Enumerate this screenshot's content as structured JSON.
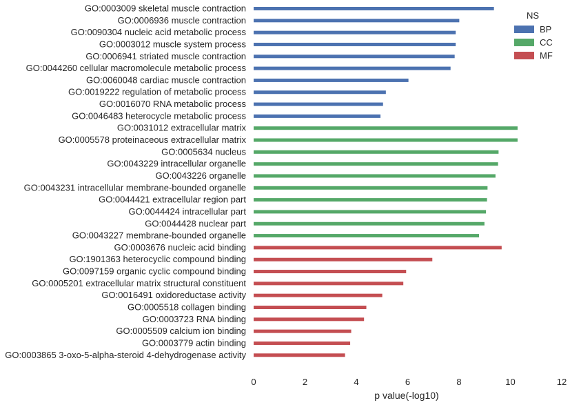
{
  "chart_data": {
    "type": "bar",
    "orientation": "horizontal",
    "xlabel": "p value(-log10)",
    "ylabel": "",
    "xlim": [
      0,
      12
    ],
    "xticks": [
      0,
      2,
      4,
      6,
      8,
      10,
      12
    ],
    "grid": false,
    "legend": {
      "title": "NS",
      "placement": "top-right",
      "entries": [
        {
          "name": "BP",
          "color": "#4c72b0"
        },
        {
          "name": "CC",
          "color": "#55a868"
        },
        {
          "name": "MF",
          "color": "#c44e52"
        }
      ]
    },
    "categories": [
      "GO:0003009 skeletal muscle contraction",
      "GO:0006936 muscle contraction",
      "GO:0090304 nucleic acid metabolic process",
      "GO:0003012 muscle system process",
      "GO:0006941 striated muscle contraction",
      "GO:0044260 cellular macromolecule metabolic process",
      "GO:0060048 cardiac muscle contraction",
      "GO:0019222 regulation of metabolic process",
      "GO:0016070 RNA metabolic process",
      "GO:0046483 heterocycle metabolic process",
      "GO:0031012 extracellular matrix",
      "GO:0005578 proteinaceous extracellular matrix",
      "GO:0005634 nucleus",
      "GO:0043229 intracellular organelle",
      "GO:0043226 organelle",
      "GO:0043231 intracellular membrane-bounded organelle",
      "GO:0044421 extracellular region part",
      "GO:0044424 intracellular part",
      "GO:0044428 nuclear part",
      "GO:0043227 membrane-bounded organelle",
      "GO:0003676 nucleic acid binding",
      "GO:1901363 heterocyclic compound binding",
      "GO:0097159 organic cyclic compound binding",
      "GO:0005201 extracellular matrix structural constituent",
      "GO:0016491 oxidoreductase activity",
      "GO:0005518 collagen binding",
      "GO:0003723 RNA binding",
      "GO:0005509 calcium ion binding",
      "GO:0003779 actin binding",
      "GO:0003865 3-oxo-5-alpha-steroid 4-dehydrogenase activity"
    ],
    "values": [
      9.36,
      8.01,
      7.87,
      7.87,
      7.83,
      7.67,
      6.03,
      5.15,
      5.04,
      4.94,
      10.28,
      10.28,
      9.54,
      9.52,
      9.42,
      9.11,
      9.09,
      9.05,
      8.99,
      8.78,
      9.66,
      6.96,
      5.94,
      5.83,
      5.01,
      4.39,
      4.3,
      3.8,
      3.76,
      3.56
    ],
    "groups": [
      "BP",
      "BP",
      "BP",
      "BP",
      "BP",
      "BP",
      "BP",
      "BP",
      "BP",
      "BP",
      "CC",
      "CC",
      "CC",
      "CC",
      "CC",
      "CC",
      "CC",
      "CC",
      "CC",
      "CC",
      "MF",
      "MF",
      "MF",
      "MF",
      "MF",
      "MF",
      "MF",
      "MF",
      "MF",
      "MF"
    ]
  }
}
